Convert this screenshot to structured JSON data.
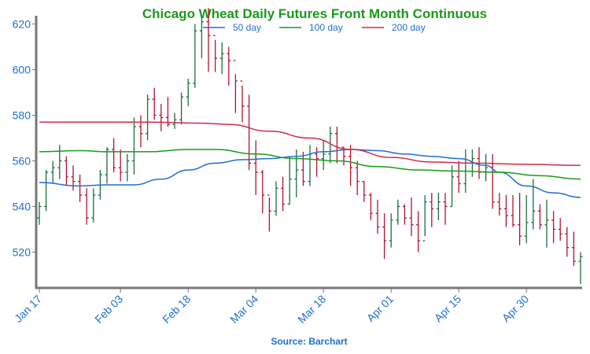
{
  "chart_data": {
    "type": "ohlc",
    "title": "Chicago Wheat Daily Futures Front Month Continuous",
    "source": "Source: Barchart",
    "ylim": [
      505,
      625
    ],
    "yticks": [
      520,
      540,
      560,
      580,
      600,
      620
    ],
    "xticks": [
      "Jan 17",
      "Feb 03",
      "Feb 18",
      "Mar 04",
      "Mar 18",
      "Apr 01",
      "Apr 15",
      "Apr 30"
    ],
    "xtick_index": [
      0,
      12,
      22,
      32,
      42,
      52,
      62,
      72
    ],
    "grid": false,
    "legend": "top",
    "colors": {
      "up": "#1b6e3a",
      "down": "#b3122f",
      "ma50": "#1f6fd1",
      "ma100": "#1a9a1a",
      "ma200": "#d12a4a"
    },
    "series": [
      {
        "name": "50 day",
        "points": [
          [
            0,
            550.5
          ],
          [
            6,
            549
          ],
          [
            10,
            549.5
          ],
          [
            14,
            549.5
          ],
          [
            18,
            552
          ],
          [
            22,
            556
          ],
          [
            26,
            559
          ],
          [
            30,
            560.5
          ],
          [
            34,
            561
          ],
          [
            38,
            562
          ],
          [
            42,
            564
          ],
          [
            46,
            565
          ],
          [
            50,
            564.5
          ],
          [
            54,
            563
          ],
          [
            58,
            562
          ],
          [
            62,
            561
          ],
          [
            66,
            558
          ],
          [
            68,
            555
          ],
          [
            72,
            549
          ],
          [
            76,
            546
          ],
          [
            80,
            544
          ]
        ]
      },
      {
        "name": "100 day",
        "points": [
          [
            0,
            564
          ],
          [
            6,
            564.5
          ],
          [
            10,
            564
          ],
          [
            16,
            564
          ],
          [
            22,
            565
          ],
          [
            26,
            565
          ],
          [
            32,
            563
          ],
          [
            38,
            561
          ],
          [
            44,
            560
          ],
          [
            50,
            557.5
          ],
          [
            56,
            556
          ],
          [
            62,
            555.5
          ],
          [
            68,
            555
          ],
          [
            74,
            553.5
          ],
          [
            80,
            552
          ]
        ]
      },
      {
        "name": "200 day",
        "points": [
          [
            0,
            577
          ],
          [
            8,
            577
          ],
          [
            16,
            577
          ],
          [
            24,
            576.5
          ],
          [
            28,
            576
          ],
          [
            34,
            573
          ],
          [
            40,
            570
          ],
          [
            46,
            565
          ],
          [
            52,
            561.5
          ],
          [
            58,
            559.5
          ],
          [
            64,
            559
          ],
          [
            72,
            558.5
          ],
          [
            80,
            558
          ]
        ]
      }
    ],
    "ohlc": [
      [
        535,
        532,
        542,
        540
      ],
      [
        540,
        538,
        556,
        555
      ],
      [
        555,
        550,
        560,
        557
      ],
      [
        557,
        552,
        567,
        560
      ],
      [
        560,
        549,
        562,
        553
      ],
      [
        553,
        547,
        558,
        551
      ],
      [
        551,
        542,
        554,
        545
      ],
      [
        545,
        532,
        548,
        535
      ],
      [
        535,
        533,
        548,
        545
      ],
      [
        545,
        543,
        556,
        554
      ],
      [
        554,
        550,
        566,
        565
      ],
      [
        565,
        555,
        570,
        557
      ],
      [
        557,
        551,
        565,
        555
      ],
      [
        555,
        551,
        563,
        560
      ],
      [
        560,
        554,
        579,
        575
      ],
      [
        575,
        566,
        580,
        572
      ],
      [
        572,
        569,
        589,
        587
      ],
      [
        587,
        578,
        592,
        580
      ],
      [
        580,
        573,
        585,
        579
      ],
      [
        579,
        575,
        588,
        576
      ],
      [
        576,
        574,
        581,
        578
      ],
      [
        578,
        576,
        590,
        588
      ],
      [
        588,
        584,
        596,
        594
      ],
      [
        594,
        592,
        620,
        617
      ],
      [
        617,
        605,
        623,
        621
      ],
      [
        621,
        599,
        627,
        615
      ],
      [
        615,
        599,
        613,
        605
      ],
      [
        605,
        598,
        612,
        607
      ],
      [
        607,
        593,
        610,
        604
      ],
      [
        604,
        581,
        598,
        595
      ],
      [
        595,
        577,
        593,
        584
      ],
      [
        584,
        556,
        589,
        559
      ],
      [
        559,
        545,
        569,
        555
      ],
      [
        555,
        537,
        556,
        545
      ],
      [
        545,
        529,
        544,
        538
      ],
      [
        538,
        536,
        551,
        548
      ],
      [
        548,
        538,
        553,
        541
      ],
      [
        541,
        541,
        562,
        552
      ],
      [
        552,
        544,
        565,
        556
      ],
      [
        556,
        549,
        564,
        551
      ],
      [
        551,
        549,
        567,
        563
      ],
      [
        563,
        553,
        566,
        561
      ],
      [
        561,
        556,
        569,
        563
      ],
      [
        563,
        559,
        575,
        572
      ],
      [
        572,
        559,
        575,
        566
      ],
      [
        566,
        558,
        566,
        562
      ],
      [
        562,
        549,
        567,
        557
      ],
      [
        557,
        545,
        560,
        551
      ],
      [
        551,
        542,
        551,
        545
      ],
      [
        545,
        534,
        546,
        537
      ],
      [
        537,
        528,
        543,
        531
      ],
      [
        531,
        517,
        537,
        525
      ],
      [
        525,
        522,
        537,
        534
      ],
      [
        534,
        532,
        543,
        540
      ],
      [
        540,
        532,
        541,
        535
      ],
      [
        535,
        527,
        544,
        532
      ],
      [
        532,
        520,
        538,
        525
      ],
      [
        525,
        527,
        545,
        542
      ],
      [
        542,
        531,
        546,
        539
      ],
      [
        539,
        534,
        546,
        542
      ],
      [
        542,
        532,
        546,
        540
      ],
      [
        540,
        540,
        558,
        553
      ],
      [
        553,
        546,
        560,
        550
      ],
      [
        550,
        546,
        565,
        559
      ],
      [
        559,
        553,
        565,
        561
      ],
      [
        561,
        552,
        566,
        555
      ],
      [
        555,
        551,
        563,
        557
      ],
      [
        557,
        539,
        563,
        542
      ],
      [
        542,
        536,
        546,
        539
      ],
      [
        539,
        531,
        545,
        536
      ],
      [
        536,
        531,
        545,
        532
      ],
      [
        532,
        523,
        546,
        527
      ],
      [
        527,
        524,
        545,
        533
      ],
      [
        533,
        530,
        552,
        538
      ],
      [
        538,
        530,
        541,
        532
      ],
      [
        532,
        522,
        543,
        534
      ],
      [
        534,
        524,
        538,
        530
      ],
      [
        530,
        525,
        535,
        528
      ],
      [
        528,
        518,
        531,
        522
      ],
      [
        522,
        514,
        529,
        516
      ],
      [
        516,
        506,
        520,
        518
      ]
    ]
  }
}
